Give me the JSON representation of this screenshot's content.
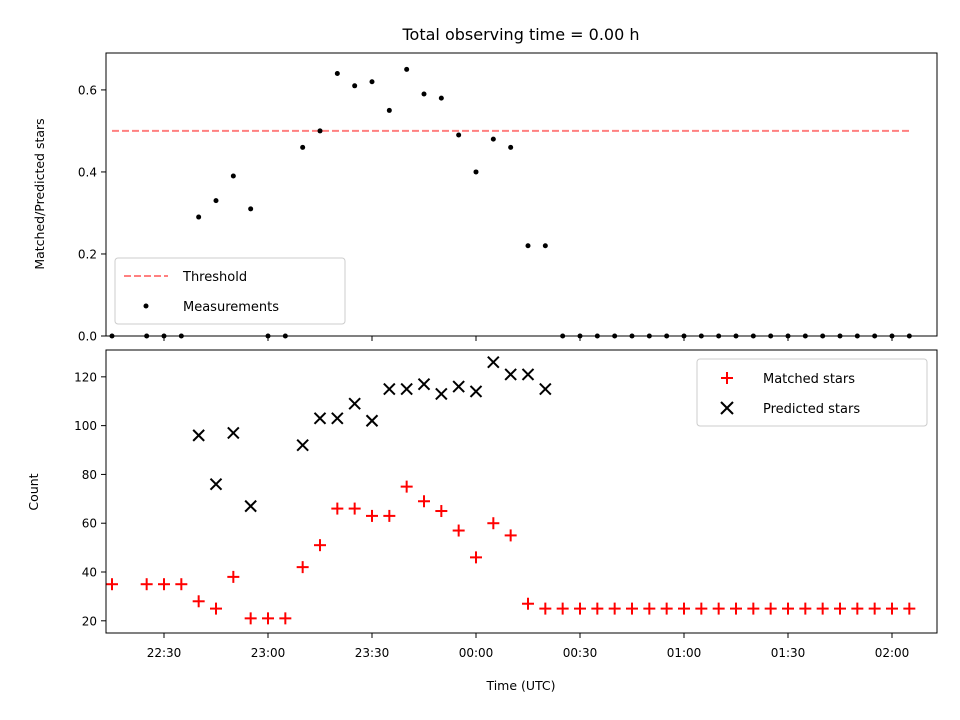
{
  "chart_data": [
    {
      "type": "scatter",
      "title": "Total observing time = 0.00 h",
      "xlabel": "",
      "ylabel": "Matched/Predicted stars",
      "ylim": [
        0,
        0.69
      ],
      "yticks": [
        "0.0",
        "0.2",
        "0.4",
        "0.6"
      ],
      "ytick_values": [
        0,
        0.2,
        0.4,
        0.6
      ],
      "threshold": {
        "name": "Threshold",
        "value": 0.5,
        "x_start": "22:15",
        "x_end": "02:05",
        "color": "#ff8080"
      },
      "series": [
        {
          "name": "Measurements",
          "color": "#000000",
          "x": [
            "22:15",
            "22:25",
            "22:30",
            "22:35",
            "22:40",
            "22:45",
            "22:50",
            "22:55",
            "23:00",
            "23:05",
            "23:10",
            "23:15",
            "23:20",
            "23:25",
            "23:30",
            "23:35",
            "23:40",
            "23:45",
            "23:50",
            "23:55",
            "00:00",
            "00:05",
            "00:10",
            "00:15",
            "00:20",
            "00:25",
            "00:30",
            "00:35",
            "00:40",
            "00:45",
            "00:50",
            "00:55",
            "01:00",
            "01:05",
            "01:10",
            "01:15",
            "01:20",
            "01:25",
            "01:30",
            "01:35",
            "01:40",
            "01:45",
            "01:50",
            "01:55",
            "02:00",
            "02:05"
          ],
          "y": [
            0.0,
            0.0,
            0.0,
            0.0,
            0.29,
            0.33,
            0.39,
            0.31,
            0.0,
            0.0,
            0.46,
            0.5,
            0.64,
            0.61,
            0.62,
            0.55,
            0.65,
            0.59,
            0.58,
            0.49,
            0.4,
            0.48,
            0.46,
            0.22,
            0.22,
            0.0,
            0.0,
            0.0,
            0.0,
            0.0,
            0.0,
            0.0,
            0.0,
            0.0,
            0.0,
            0.0,
            0.0,
            0.0,
            0.0,
            0.0,
            0.0,
            0.0,
            0.0,
            0.0,
            0.0,
            0.0
          ]
        }
      ],
      "legend": {
        "position": "lower-left",
        "threshold_label": "Threshold",
        "measurements_label": "Measurements"
      }
    },
    {
      "type": "scatter",
      "xlabel": "Time (UTC)",
      "ylabel": "Count",
      "ylim": [
        15,
        131
      ],
      "yticks": [
        "20",
        "40",
        "60",
        "80",
        "100",
        "120"
      ],
      "ytick_values": [
        20,
        40,
        60,
        80,
        100,
        120
      ],
      "xticks": [
        "22:30",
        "23:00",
        "23:30",
        "00:00",
        "00:30",
        "01:00",
        "01:30",
        "02:00"
      ],
      "series": [
        {
          "name": "Matched stars",
          "color": "#ff0000",
          "marker": "+",
          "x": [
            "22:15",
            "22:25",
            "22:30",
            "22:35",
            "22:40",
            "22:45",
            "22:50",
            "22:55",
            "23:00",
            "23:05",
            "23:10",
            "23:15",
            "23:20",
            "23:25",
            "23:30",
            "23:35",
            "23:40",
            "23:45",
            "23:50",
            "23:55",
            "00:00",
            "00:05",
            "00:10",
            "00:15",
            "00:20",
            "00:25",
            "00:30",
            "00:35",
            "00:40",
            "00:45",
            "00:50",
            "00:55",
            "01:00",
            "01:05",
            "01:10",
            "01:15",
            "01:20",
            "01:25",
            "01:30",
            "01:35",
            "01:40",
            "01:45",
            "01:50",
            "01:55",
            "02:00",
            "02:05"
          ],
          "y": [
            35,
            35,
            35,
            35,
            28,
            25,
            38,
            21,
            21,
            21,
            42,
            51,
            66,
            66,
            63,
            63,
            75,
            69,
            65,
            57,
            46,
            60,
            55,
            27,
            25,
            25,
            25,
            25,
            25,
            25,
            25,
            25,
            25,
            25,
            25,
            25,
            25,
            25,
            25,
            25,
            25,
            25,
            25,
            25,
            25,
            25
          ]
        },
        {
          "name": "Predicted stars",
          "color": "#000000",
          "marker": "x",
          "x": [
            "22:40",
            "22:45",
            "22:50",
            "22:55",
            "23:10",
            "23:15",
            "23:20",
            "23:25",
            "23:30",
            "23:35",
            "23:40",
            "23:45",
            "23:50",
            "23:55",
            "00:00",
            "00:05",
            "00:10",
            "00:15",
            "00:20"
          ],
          "y": [
            96,
            76,
            97,
            67,
            92,
            103,
            103,
            109,
            102,
            115,
            115,
            117,
            113,
            116,
            114,
            126,
            121,
            121,
            115
          ]
        }
      ],
      "legend": {
        "position": "top-right",
        "matched_label": "Matched stars",
        "predicted_label": "Predicted stars"
      }
    }
  ]
}
